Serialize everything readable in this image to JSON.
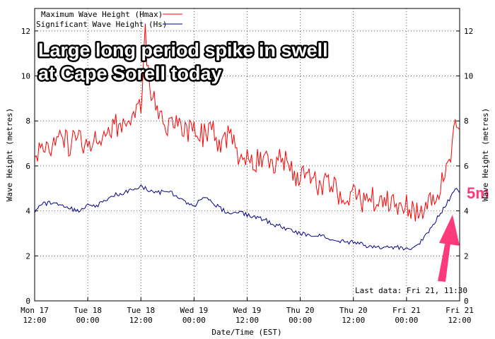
{
  "chart_data": {
    "type": "line",
    "xlabel": "Date/Time (EST)",
    "ylabel": "Wave Height (metres)",
    "ylim": [
      0,
      13
    ],
    "y_ticks": [
      0,
      2,
      4,
      6,
      8,
      10,
      12
    ],
    "x_tick_labels": [
      {
        "line1": "Mon 17",
        "line2": "12:00"
      },
      {
        "line1": "Tue 18",
        "line2": "00:00"
      },
      {
        "line1": "Tue 18",
        "line2": "12:00"
      },
      {
        "line1": "Wed 19",
        "line2": "00:00"
      },
      {
        "line1": "Wed 19",
        "line2": "12:00"
      },
      {
        "line1": "Thu 20",
        "line2": "00:00"
      },
      {
        "line1": "Thu 20",
        "line2": "12:00"
      },
      {
        "line1": "Fri 21",
        "line2": "00:00"
      },
      {
        "line1": "Fri 21",
        "line2": "12:00"
      }
    ],
    "xlim_hours": [
      0,
      96
    ],
    "legend_position": "top-left",
    "series": [
      {
        "name": "Maximum Wave Height (Hmax)",
        "color": "#ff0000",
        "points": [
          [
            0,
            6.4
          ],
          [
            2,
            7.1
          ],
          [
            4,
            6.7
          ],
          [
            6,
            7.3
          ],
          [
            8,
            6.9
          ],
          [
            10,
            7.4
          ],
          [
            12,
            6.8
          ],
          [
            14,
            7.5
          ],
          [
            16,
            7.2
          ],
          [
            18,
            7.9
          ],
          [
            20,
            7.6
          ],
          [
            22,
            8.3
          ],
          [
            24,
            8.6
          ],
          [
            25,
            11.8
          ],
          [
            26,
            9.2
          ],
          [
            28,
            8.4
          ],
          [
            30,
            7.9
          ],
          [
            32,
            8.3
          ],
          [
            34,
            7.5
          ],
          [
            36,
            7.8
          ],
          [
            38,
            7.3
          ],
          [
            40,
            7.6
          ],
          [
            42,
            6.9
          ],
          [
            44,
            7.3
          ],
          [
            46,
            6.6
          ],
          [
            48,
            6.5
          ],
          [
            50,
            6.2
          ],
          [
            52,
            6.6
          ],
          [
            54,
            6.1
          ],
          [
            56,
            6.4
          ],
          [
            58,
            5.9
          ],
          [
            60,
            5.4
          ],
          [
            62,
            5.6
          ],
          [
            64,
            5.2
          ],
          [
            66,
            5.3
          ],
          [
            68,
            4.9
          ],
          [
            70,
            4.6
          ],
          [
            72,
            4.8
          ],
          [
            74,
            4.4
          ],
          [
            76,
            4.6
          ],
          [
            78,
            4.2
          ],
          [
            80,
            4.4
          ],
          [
            82,
            4.0
          ],
          [
            84,
            4.3
          ],
          [
            86,
            4.0
          ],
          [
            88,
            4.2
          ],
          [
            90,
            4.4
          ],
          [
            92,
            5.2
          ],
          [
            94,
            6.6
          ],
          [
            95,
            7.8
          ],
          [
            96,
            7.6
          ]
        ]
      },
      {
        "name": "Significant Wave Height (Hs)",
        "color": "#00008b",
        "points": [
          [
            0,
            4.0
          ],
          [
            2,
            4.3
          ],
          [
            4,
            4.4
          ],
          [
            6,
            4.2
          ],
          [
            8,
            4.1
          ],
          [
            10,
            4.0
          ],
          [
            12,
            4.3
          ],
          [
            14,
            4.2
          ],
          [
            16,
            4.5
          ],
          [
            18,
            4.7
          ],
          [
            20,
            4.8
          ],
          [
            22,
            5.0
          ],
          [
            24,
            5.1
          ],
          [
            26,
            4.9
          ],
          [
            28,
            4.8
          ],
          [
            30,
            4.9
          ],
          [
            32,
            4.7
          ],
          [
            34,
            4.4
          ],
          [
            36,
            4.2
          ],
          [
            38,
            4.6
          ],
          [
            40,
            4.4
          ],
          [
            42,
            4.1
          ],
          [
            44,
            3.9
          ],
          [
            46,
            4.0
          ],
          [
            48,
            3.8
          ],
          [
            50,
            3.7
          ],
          [
            52,
            3.6
          ],
          [
            54,
            3.4
          ],
          [
            56,
            3.3
          ],
          [
            58,
            3.1
          ],
          [
            60,
            3.0
          ],
          [
            62,
            2.9
          ],
          [
            64,
            2.9
          ],
          [
            66,
            2.8
          ],
          [
            68,
            2.7
          ],
          [
            70,
            2.6
          ],
          [
            72,
            2.6
          ],
          [
            74,
            2.5
          ],
          [
            76,
            2.4
          ],
          [
            78,
            2.4
          ],
          [
            80,
            2.4
          ],
          [
            82,
            2.4
          ],
          [
            84,
            2.3
          ],
          [
            86,
            2.4
          ],
          [
            88,
            2.8
          ],
          [
            90,
            3.4
          ],
          [
            92,
            4.0
          ],
          [
            94,
            4.6
          ],
          [
            95,
            5.0
          ],
          [
            96,
            4.8
          ]
        ]
      }
    ],
    "annotations": {
      "headline_line1": "Large long period spike in swell",
      "headline_line2": "at Cape Sorell today",
      "spike_label": "5m",
      "last_data": "Last data: Fri 21, 11:30"
    }
  }
}
